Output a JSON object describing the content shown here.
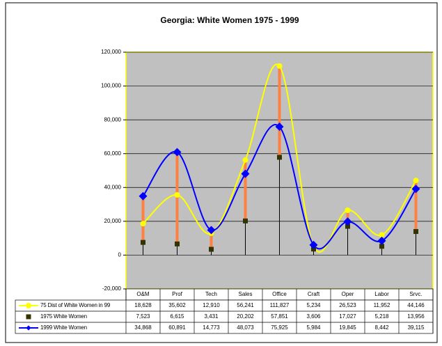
{
  "chart_data": {
    "type": "line",
    "title": "Georgia: White Women 1975 - 1999",
    "categories": [
      "O&M",
      "Prof",
      "Tech",
      "Sales",
      "Office",
      "Craft",
      "Oper",
      "Labor",
      "Srvc."
    ],
    "series": [
      {
        "name": "75 Dist of White Women in 99",
        "color": "#ffff00",
        "marker": "circle",
        "smooth": true,
        "values": [
          18628,
          35602,
          12910,
          56241,
          111827,
          5234,
          26523,
          11952,
          44146
        ],
        "value_labels": [
          "18,628",
          "35,602",
          "12,910",
          "56,241",
          "111,827",
          "5,234",
          "26,523",
          "11,952",
          "44,146"
        ]
      },
      {
        "name": "1975 White Women",
        "color": "#333300",
        "marker": "square",
        "smooth": false,
        "values": [
          7523,
          6615,
          3431,
          20202,
          57851,
          3606,
          17027,
          5218,
          13956
        ],
        "value_labels": [
          "7,523",
          "6,615",
          "3,431",
          "20,202",
          "57,851",
          "3,606",
          "17,027",
          "5,218",
          "13,956"
        ]
      },
      {
        "name": "1999 White Women",
        "color": "#0000ff",
        "marker": "diamond",
        "smooth": true,
        "values": [
          34868,
          60891,
          14773,
          48073,
          75925,
          5984,
          19845,
          8442,
          39115
        ],
        "value_labels": [
          "34,868",
          "60,891",
          "14,773",
          "48,073",
          "75,925",
          "5,984",
          "19,845",
          "8,442",
          "39,115"
        ]
      }
    ],
    "ylim": [
      -20000,
      120000
    ],
    "yticks": [
      {
        "value": -20000,
        "label": "-20,000"
      },
      0,
      {
        "value": 20000,
        "label": "20,000"
      },
      {
        "value": 40000,
        "label": "40,000"
      },
      {
        "value": 60000,
        "label": "60,000"
      },
      {
        "value": 80000,
        "label": "80,000"
      },
      {
        "value": 100000,
        "label": "100,000"
      },
      {
        "value": 120000,
        "label": "120,000"
      }
    ],
    "grid": true,
    "high_low_lines": "#ff8040",
    "drop_lines": "#000000",
    "plot_background": "#c0c0c0"
  }
}
